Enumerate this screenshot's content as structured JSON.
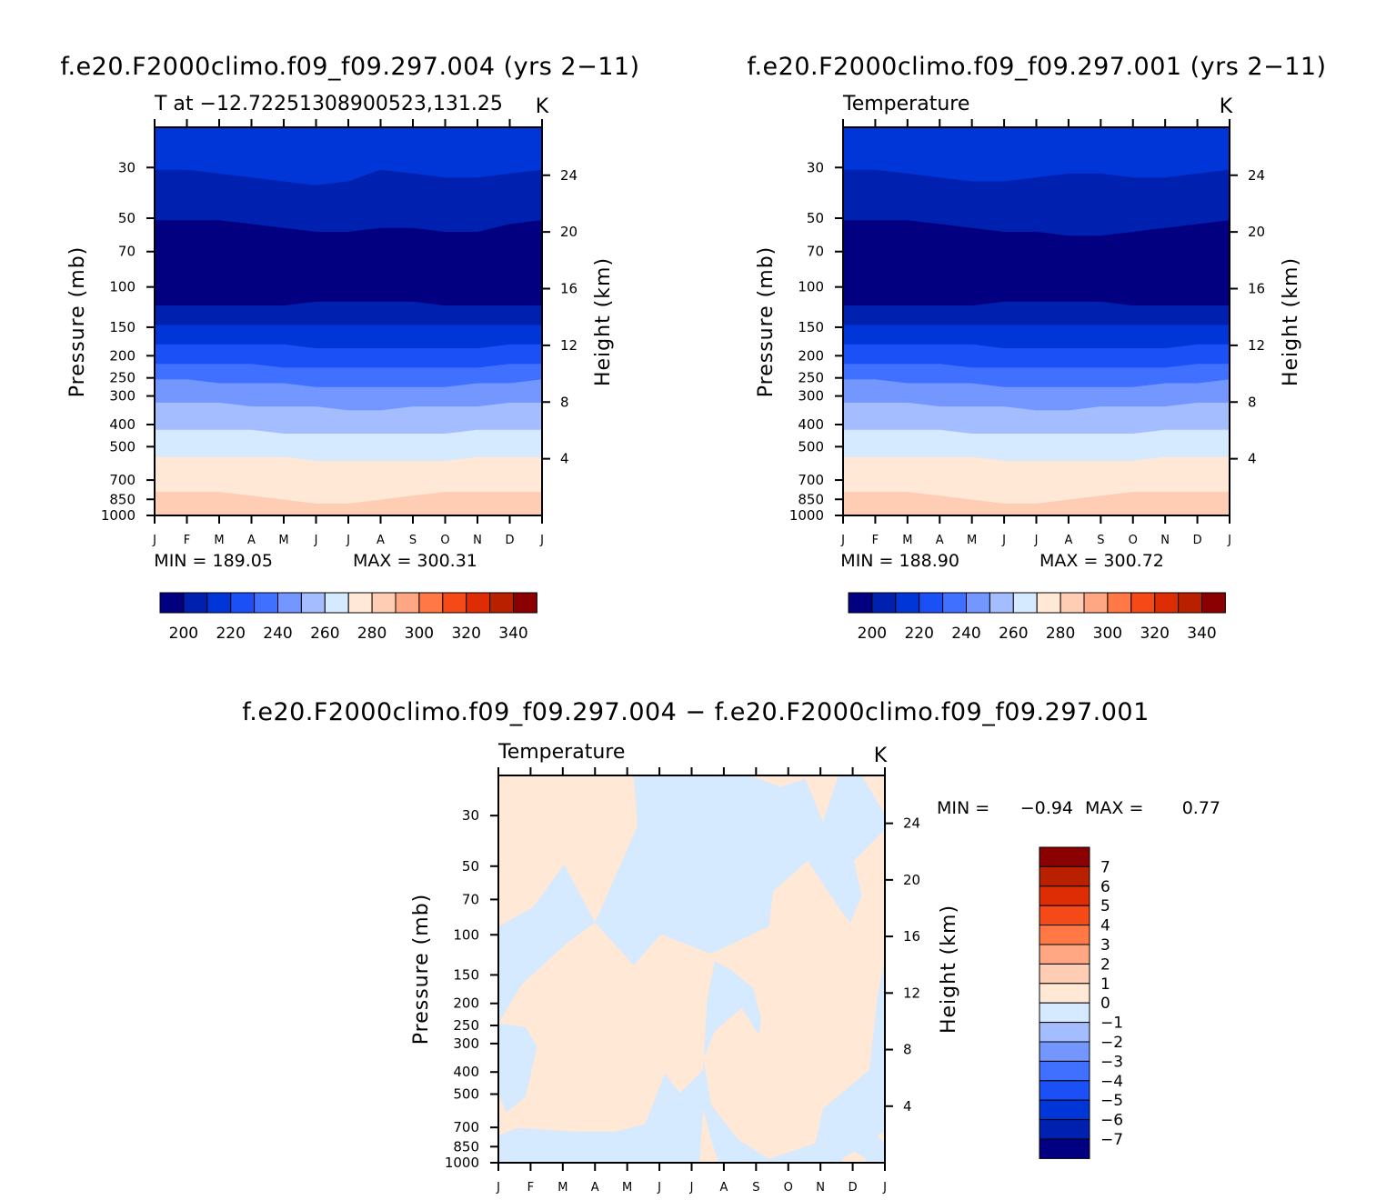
{
  "palette": [
    "#020080",
    "#0020b0",
    "#0036d8",
    "#1a50f5",
    "#4070ff",
    "#7396ff",
    "#a4bdff",
    "#d5e9ff",
    "#ffe8d6",
    "#ffcdb4",
    "#ffa783",
    "#ff7845",
    "#f54918",
    "#de2c05",
    "#b82000",
    "#8b0000"
  ],
  "diff_palette": [
    "#020080",
    "#0020b0",
    "#0036d8",
    "#1a50f5",
    "#4070ff",
    "#7396ff",
    "#a4bdff",
    "#d5e9ff",
    "#ffe8d6",
    "#ffcdb4",
    "#ffa783",
    "#ff7845",
    "#f54918",
    "#de2c05",
    "#b82000",
    "#8b0000"
  ],
  "chart_data": [
    {
      "type": "heatmap",
      "id": "panel-a",
      "title": "f.e20.F2000climo.f09_f09.297.004 (yrs 2−11)",
      "subtitle_left": "T at −12.72251308900523,131.25",
      "subtitle_right": "K",
      "ylabel": "Pressure (mb)",
      "ylabel_right": "Height (km)",
      "xticks": [
        "J",
        "F",
        "M",
        "A",
        "M",
        "J",
        "J",
        "A",
        "S",
        "O",
        "N",
        "D",
        "J"
      ],
      "pressure_ticks": [
        30,
        50,
        70,
        100,
        150,
        200,
        250,
        300,
        400,
        500,
        700,
        850,
        1000
      ],
      "height_ticks": [
        24,
        20,
        16,
        12,
        8,
        4
      ],
      "min_label": "MIN = 189.05",
      "max_label": "MAX = 300.31",
      "min": 189.05,
      "max": 300.31,
      "colorbar_labels": [
        "200",
        "220",
        "240",
        "260",
        "280",
        "300",
        "320",
        "340"
      ],
      "contour_levels": [
        200,
        210,
        220,
        230,
        240,
        250,
        260,
        270,
        280,
        290,
        300
      ]
    },
    {
      "type": "heatmap",
      "id": "panel-b",
      "title": "f.e20.F2000climo.f09_f09.297.001 (yrs 2−11)",
      "subtitle_left": "Temperature",
      "subtitle_right": "K",
      "ylabel": "Pressure (mb)",
      "ylabel_right": "Height (km)",
      "xticks": [
        "J",
        "F",
        "M",
        "A",
        "M",
        "J",
        "J",
        "A",
        "S",
        "O",
        "N",
        "D",
        "J"
      ],
      "pressure_ticks": [
        30,
        50,
        70,
        100,
        150,
        200,
        250,
        300,
        400,
        500,
        700,
        850,
        1000
      ],
      "height_ticks": [
        24,
        20,
        16,
        12,
        8,
        4
      ],
      "min_label": "MIN = 188.90",
      "max_label": "MAX = 300.72",
      "min": 188.9,
      "max": 300.72,
      "colorbar_labels": [
        "200",
        "220",
        "240",
        "260",
        "280",
        "300",
        "320",
        "340"
      ],
      "contour_levels": [
        200,
        210,
        220,
        230,
        240,
        250,
        260,
        270,
        280,
        290,
        300
      ]
    },
    {
      "type": "heatmap",
      "id": "panel-diff",
      "title": "f.e20.F2000climo.f09_f09.297.004 − f.e20.F2000climo.f09_f09.297.001",
      "subtitle_left": "Temperature",
      "subtitle_right": "K",
      "ylabel": "Pressure (mb)",
      "ylabel_right": "Height (km)",
      "xticks": [
        "J",
        "F",
        "M",
        "A",
        "M",
        "J",
        "J",
        "A",
        "S",
        "O",
        "N",
        "D",
        "J"
      ],
      "pressure_ticks": [
        30,
        50,
        70,
        100,
        150,
        200,
        250,
        300,
        400,
        500,
        700,
        850,
        1000
      ],
      "height_ticks": [
        24,
        20,
        16,
        12,
        8,
        4
      ],
      "min_text": "MIN =",
      "min_value": "−0.94",
      "max_text": "MAX =",
      "max_value": "0.77",
      "min": -0.94,
      "max": 0.77,
      "colorbar_labels": [
        "7",
        "6",
        "5",
        "4",
        "3",
        "2",
        "1",
        "0",
        "−1",
        "−2",
        "−3",
        "−4",
        "−5",
        "−6",
        "−7"
      ],
      "contour_levels": [
        -7,
        -6,
        -5,
        -4,
        -3,
        -2,
        -1,
        0,
        1,
        2,
        3,
        4,
        5,
        6,
        7
      ]
    }
  ]
}
